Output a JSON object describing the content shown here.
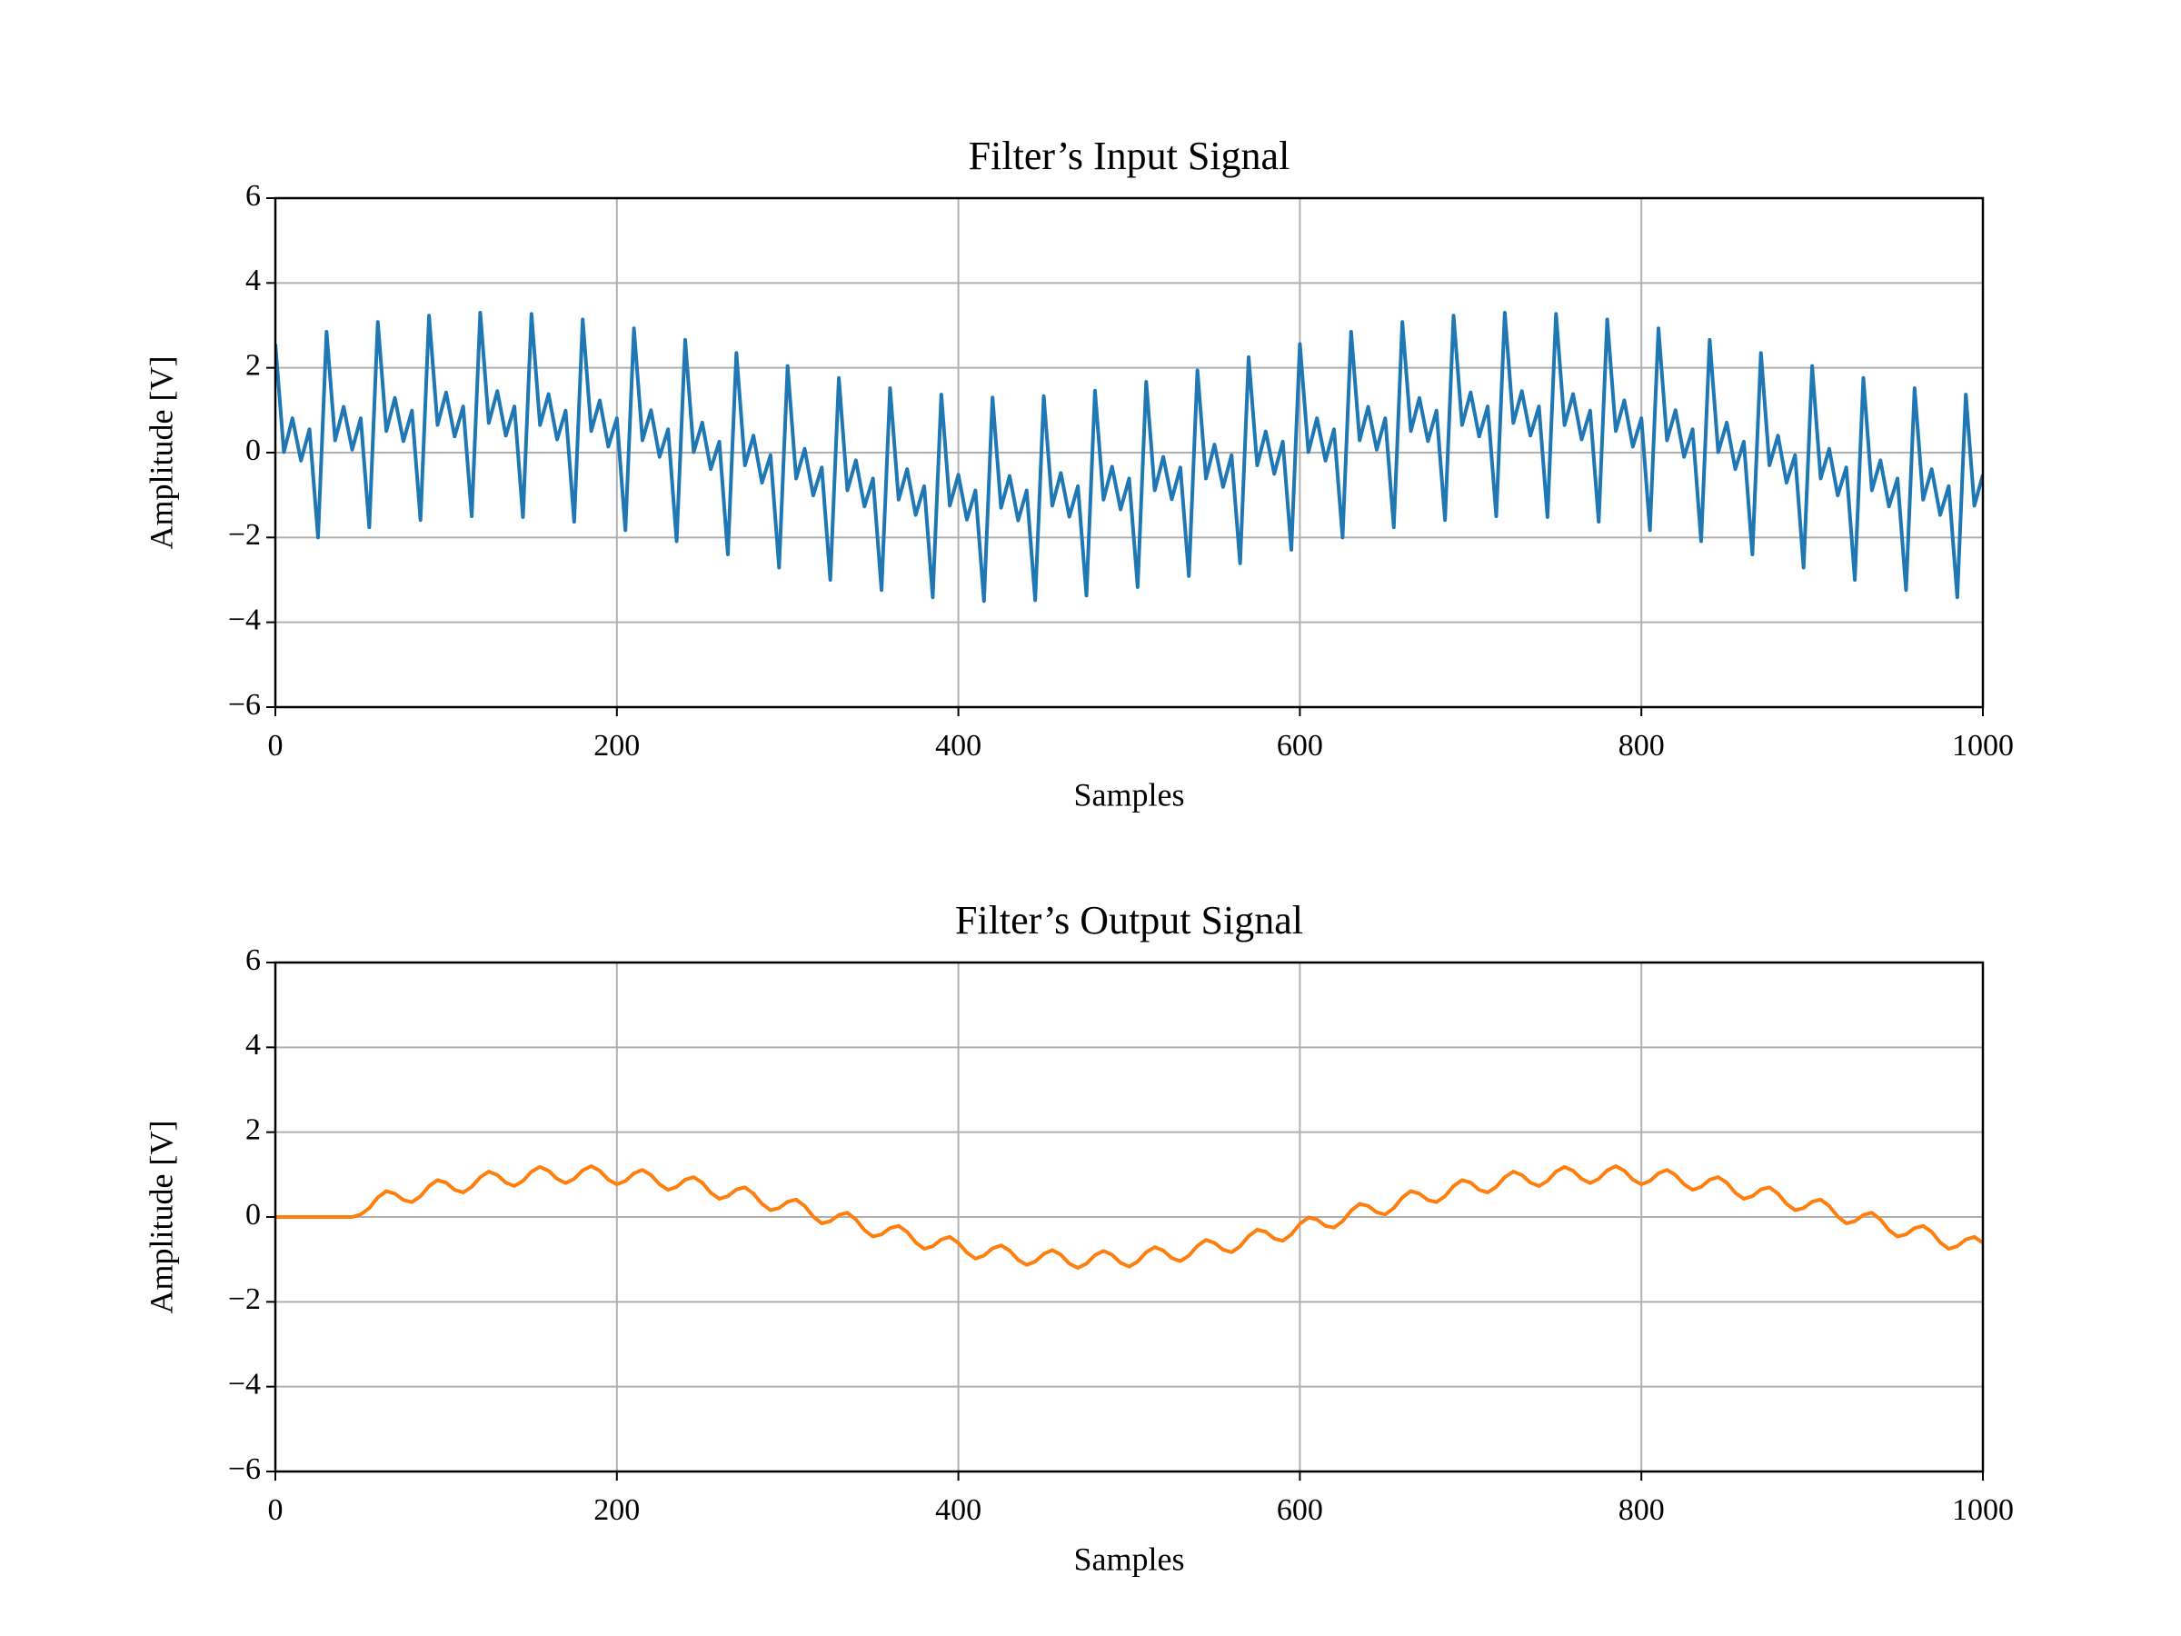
{
  "chart_data": [
    {
      "type": "line",
      "title": "Filter’s Input Signal",
      "x_label": "Samples",
      "y_label": "Amplitude [V]",
      "color": "#1f77b4",
      "grid": true,
      "xlim": [
        0,
        1000
      ],
      "xticks": [
        0,
        200,
        400,
        600,
        800,
        1000
      ],
      "ylim": [
        -6,
        6
      ],
      "yticks": [
        {
          "value": -6,
          "label": "−6"
        },
        {
          "value": -4,
          "label": "−4"
        },
        {
          "value": -2,
          "label": "−2"
        },
        0,
        2,
        4,
        6
      ],
      "x": [
        0,
        5,
        10,
        15,
        20,
        25,
        30,
        35,
        40,
        45,
        50,
        55,
        60,
        65,
        70,
        75,
        80,
        85,
        90,
        95,
        100,
        105,
        110,
        115,
        120,
        125,
        130,
        135,
        140,
        145,
        150,
        155,
        160,
        165,
        170,
        175,
        180,
        185,
        190,
        195,
        200,
        205,
        210,
        215,
        220,
        225,
        230,
        235,
        240,
        245,
        250,
        255,
        260,
        265,
        270,
        275,
        280,
        285,
        290,
        295,
        300,
        305,
        310,
        315,
        320,
        325,
        330,
        335,
        340,
        345,
        350,
        355,
        360,
        365,
        370,
        375,
        380,
        385,
        390,
        395,
        400,
        405,
        410,
        415,
        420,
        425,
        430,
        435,
        440,
        445,
        450,
        455,
        460,
        465,
        470,
        475,
        480,
        485,
        490,
        495,
        500,
        505,
        510,
        515,
        520,
        525,
        530,
        535,
        540,
        545,
        550,
        555,
        560,
        565,
        570,
        575,
        580,
        585,
        590,
        595,
        600,
        605,
        610,
        615,
        620,
        625,
        630,
        635,
        640,
        645,
        650,
        655,
        660,
        665,
        670,
        675,
        680,
        685,
        690,
        695,
        700,
        705,
        710,
        715,
        720,
        725,
        730,
        735,
        740,
        745,
        750,
        755,
        760,
        765,
        770,
        775,
        780,
        785,
        790,
        795,
        800,
        805,
        810,
        815,
        820,
        825,
        830,
        835,
        840,
        845,
        850,
        855,
        860,
        865,
        870,
        875,
        880,
        885,
        890,
        895,
        900,
        905,
        910,
        915,
        920,
        925,
        930,
        935,
        940,
        945,
        950,
        955,
        960,
        965,
        970,
        975,
        980,
        985,
        990,
        995,
        1000
      ],
      "values": [
        2.56,
        0.01,
        0.81,
        -0.19,
        0.55,
        -2.0,
        2.85,
        0.29,
        1.08,
        0.07,
        0.81,
        -1.76,
        3.08,
        0.51,
        1.29,
        0.27,
        0.99,
        -1.59,
        3.23,
        0.65,
        1.42,
        0.38,
        1.09,
        -1.5,
        3.3,
        0.7,
        1.45,
        0.4,
        1.09,
        -1.52,
        3.27,
        0.65,
        1.38,
        0.31,
        0.99,
        -1.63,
        3.14,
        0.51,
        1.23,
        0.14,
        0.81,
        -1.83,
        2.93,
        0.29,
        1.0,
        -0.1,
        0.55,
        -2.09,
        2.66,
        0.01,
        0.71,
        -0.39,
        0.26,
        -2.4,
        2.35,
        -0.3,
        0.4,
        -0.71,
        -0.06,
        -2.71,
        2.04,
        -0.61,
        0.09,
        -1.01,
        -0.35,
        -3.0,
        1.76,
        -0.89,
        -0.18,
        -1.27,
        -0.61,
        -3.24,
        1.52,
        -1.11,
        -0.39,
        -1.47,
        -0.79,
        -3.41,
        1.37,
        -1.25,
        -0.52,
        -1.58,
        -0.89,
        -3.5,
        1.3,
        -1.3,
        -0.55,
        -1.6,
        -0.89,
        -3.48,
        1.33,
        -1.25,
        -0.48,
        -1.51,
        -0.79,
        -3.37,
        1.46,
        -1.11,
        -0.33,
        -1.34,
        -0.61,
        -3.17,
        1.67,
        -0.89,
        -0.1,
        -1.1,
        -0.35,
        -2.91,
        1.94,
        -0.61,
        0.19,
        -0.81,
        -0.06,
        -2.61,
        2.25,
        -0.3,
        0.5,
        -0.5,
        0.26,
        -2.29,
        2.56,
        0.01,
        0.81,
        -0.19,
        0.55,
        -2.0,
        2.85,
        0.29,
        1.08,
        0.07,
        0.81,
        -1.76,
        3.08,
        0.51,
        1.29,
        0.27,
        0.99,
        -1.59,
        3.23,
        0.65,
        1.42,
        0.38,
        1.09,
        -1.5,
        3.3,
        0.7,
        1.45,
        0.4,
        1.09,
        -1.52,
        3.27,
        0.65,
        1.38,
        0.31,
        0.99,
        -1.63,
        3.14,
        0.51,
        1.23,
        0.14,
        0.81,
        -1.83,
        2.93,
        0.29,
        1.0,
        -0.1,
        0.55,
        -2.09,
        2.66,
        0.01,
        0.71,
        -0.39,
        0.26,
        -2.4,
        2.35,
        -0.3,
        0.4,
        -0.71,
        -0.06,
        -2.71,
        2.04,
        -0.61,
        0.09,
        -1.01,
        -0.35,
        -3.0,
        1.76,
        -0.89,
        -0.18,
        -1.27,
        -0.61,
        -3.24,
        1.52,
        -1.11,
        -0.39,
        -1.47,
        -0.79,
        -3.41,
        1.37,
        -1.25,
        -0.52
      ]
    },
    {
      "type": "line",
      "title": "Filter’s Output Signal",
      "x_label": "Samples",
      "y_label": "Amplitude [V]",
      "color": "#ff7f0e",
      "grid": true,
      "xlim": [
        0,
        1000
      ],
      "xticks": [
        0,
        200,
        400,
        600,
        800,
        1000
      ],
      "ylim": [
        -6,
        6
      ],
      "yticks": [
        {
          "value": -6,
          "label": "−6"
        },
        {
          "value": -4,
          "label": "−4"
        },
        {
          "value": -2,
          "label": "−2"
        },
        0,
        2,
        4,
        6
      ],
      "x": [
        0,
        5,
        10,
        15,
        20,
        25,
        30,
        35,
        40,
        45,
        50,
        55,
        60,
        65,
        70,
        75,
        80,
        85,
        90,
        95,
        100,
        105,
        110,
        115,
        120,
        125,
        130,
        135,
        140,
        145,
        150,
        155,
        160,
        165,
        170,
        175,
        180,
        185,
        190,
        195,
        200,
        205,
        210,
        215,
        220,
        225,
        230,
        235,
        240,
        245,
        250,
        255,
        260,
        265,
        270,
        275,
        280,
        285,
        290,
        295,
        300,
        305,
        310,
        315,
        320,
        325,
        330,
        335,
        340,
        345,
        350,
        355,
        360,
        365,
        370,
        375,
        380,
        385,
        390,
        395,
        400,
        405,
        410,
        415,
        420,
        425,
        430,
        435,
        440,
        445,
        450,
        455,
        460,
        465,
        470,
        475,
        480,
        485,
        490,
        495,
        500,
        505,
        510,
        515,
        520,
        525,
        530,
        535,
        540,
        545,
        550,
        555,
        560,
        565,
        570,
        575,
        580,
        585,
        590,
        595,
        600,
        605,
        610,
        615,
        620,
        625,
        630,
        635,
        640,
        645,
        650,
        655,
        660,
        665,
        670,
        675,
        680,
        685,
        690,
        695,
        700,
        705,
        710,
        715,
        720,
        725,
        730,
        735,
        740,
        745,
        750,
        755,
        760,
        765,
        770,
        775,
        780,
        785,
        790,
        795,
        800,
        805,
        810,
        815,
        820,
        825,
        830,
        835,
        840,
        845,
        850,
        855,
        860,
        865,
        870,
        875,
        880,
        885,
        890,
        895,
        900,
        905,
        910,
        915,
        920,
        925,
        930,
        935,
        940,
        945,
        950,
        955,
        960,
        965,
        970,
        975,
        980,
        985,
        990,
        995,
        1000
      ],
      "values": [
        0,
        0,
        0,
        0,
        0,
        0,
        0,
        0,
        0,
        0,
        0.06,
        0.21,
        0.46,
        0.61,
        0.55,
        0.4,
        0.35,
        0.49,
        0.73,
        0.87,
        0.81,
        0.64,
        0.58,
        0.71,
        0.94,
        1.07,
        0.99,
        0.81,
        0.73,
        0.85,
        1.07,
        1.18,
        1.09,
        0.9,
        0.8,
        0.9,
        1.1,
        1.2,
        1.09,
        0.88,
        0.77,
        0.85,
        1.03,
        1.11,
        0.99,
        0.77,
        0.64,
        0.71,
        0.88,
        0.94,
        0.81,
        0.57,
        0.43,
        0.49,
        0.65,
        0.7,
        0.55,
        0.31,
        0.16,
        0.21,
        0.36,
        0.41,
        0.26,
        0.01,
        -0.15,
        -0.1,
        0.05,
        0.1,
        -0.06,
        -0.31,
        -0.46,
        -0.41,
        -0.26,
        -0.21,
        -0.35,
        -0.6,
        -0.75,
        -0.69,
        -0.53,
        -0.47,
        -0.61,
        -0.84,
        -0.98,
        -0.91,
        -0.74,
        -0.67,
        -0.79,
        -1.01,
        -1.13,
        -1.05,
        -0.87,
        -0.78,
        -0.89,
        -1.1,
        -1.2,
        -1.1,
        -0.9,
        -0.8,
        -0.89,
        -1.08,
        -1.17,
        -1.05,
        -0.83,
        -0.71,
        -0.79,
        -0.97,
        -1.04,
        -0.91,
        -0.68,
        -0.54,
        -0.61,
        -0.77,
        -0.83,
        -0.69,
        -0.45,
        -0.3,
        -0.35,
        -0.51,
        -0.56,
        -0.41,
        -0.16,
        -0.01,
        -0.06,
        -0.21,
        -0.25,
        -0.1,
        0.15,
        0.31,
        0.26,
        0.11,
        0.06,
        0.21,
        0.46,
        0.61,
        0.55,
        0.4,
        0.35,
        0.49,
        0.73,
        0.87,
        0.81,
        0.64,
        0.58,
        0.71,
        0.94,
        1.07,
        0.99,
        0.81,
        0.73,
        0.85,
        1.07,
        1.18,
        1.09,
        0.9,
        0.8,
        0.9,
        1.1,
        1.2,
        1.09,
        0.88,
        0.77,
        0.85,
        1.03,
        1.11,
        0.99,
        0.77,
        0.64,
        0.71,
        0.88,
        0.94,
        0.81,
        0.57,
        0.43,
        0.49,
        0.65,
        0.7,
        0.55,
        0.31,
        0.16,
        0.21,
        0.36,
        0.41,
        0.26,
        0.01,
        -0.15,
        -0.1,
        0.05,
        0.1,
        -0.06,
        -0.31,
        -0.46,
        -0.41,
        -0.26,
        -0.21,
        -0.35,
        -0.6,
        -0.75,
        -0.69,
        -0.53,
        -0.47,
        -0.61
      ]
    }
  ]
}
